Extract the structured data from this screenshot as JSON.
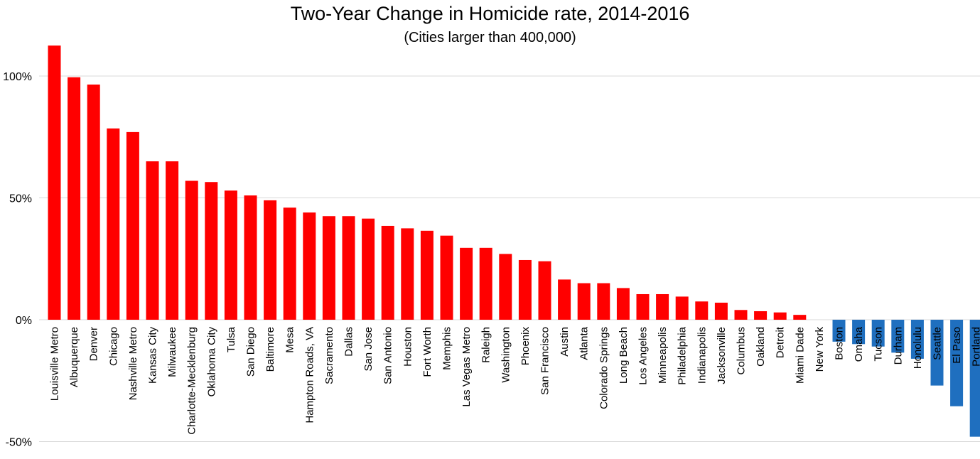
{
  "chart_data": {
    "type": "bar",
    "title": "Two-Year Change in Homicide rate, 2014-2016",
    "subtitle": "(Cities larger than 400,000)",
    "xlabel": "",
    "ylabel": "",
    "ylim": [
      -50,
      120
    ],
    "yticks": [
      100,
      50,
      0,
      -50
    ],
    "ytick_labels": [
      "100%",
      "50%",
      "0%",
      "-50%"
    ],
    "grid": true,
    "colors": {
      "positive": "#ff0000",
      "negative": "#1f6fbf",
      "grid": "#d9d9d9"
    },
    "categories": [
      "Louisville Metro",
      "Albuquerque",
      "Denver",
      "Chicago",
      "Nashville Metro",
      "Kansas City",
      "Milwaukee",
      "Charlotte-Mecklenburg",
      "Oklahoma City",
      "Tulsa",
      "San Diego",
      "Baltimore",
      "Mesa",
      "Hampton Roads, VA",
      "Sacramento",
      "Dallas",
      "San Jose",
      "San Antonio",
      "Houston",
      "Fort Worth",
      "Memphis",
      "Las Vegas Metro",
      "Raleigh",
      "Washington",
      "Phoenix",
      "San Francisco",
      "Austin",
      "Atlanta",
      "Colorado Springs",
      "Long Beach",
      "Los Angeles",
      "Minneapolis",
      "Philadelphia",
      "Indianapolis",
      "Jacksonville",
      "Columbus",
      "Oakland",
      "Detroit",
      "Miami Dade",
      "New York",
      "Boston",
      "Omaha",
      "Tucson",
      "Durham",
      "Honolulu",
      "Seattle",
      "El Paso",
      "Portland"
    ],
    "values": [
      112.5,
      99.5,
      96.5,
      78.5,
      77,
      65,
      65,
      57,
      56.5,
      53,
      51,
      49,
      46,
      44,
      42.5,
      42.5,
      41.5,
      38.5,
      37.5,
      36.5,
      34.5,
      29.5,
      29.5,
      27,
      24.5,
      24,
      16.5,
      15,
      15,
      13,
      10.5,
      10.5,
      9.5,
      7.5,
      7,
      4,
      3.5,
      3,
      2,
      0,
      -9,
      -10,
      -11,
      -13.5,
      -16,
      -27,
      -35.5,
      -48
    ]
  }
}
